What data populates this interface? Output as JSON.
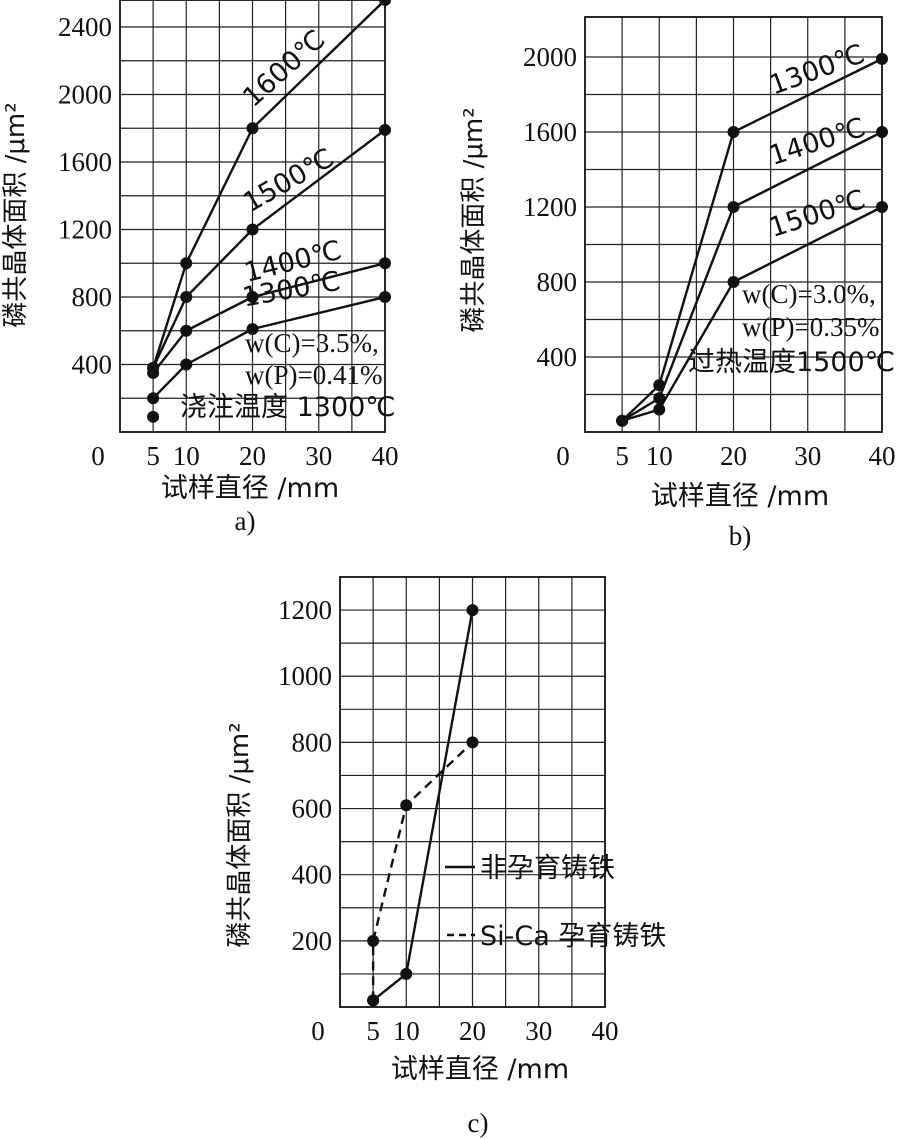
{
  "chart_data": [
    {
      "type": "line",
      "panel_label": "a)",
      "xlabel": "试样直径 /mm",
      "ylabel": "磷共晶体面积 /μm²",
      "xlim": [
        0,
        40
      ],
      "ylim": [
        0,
        2560
      ],
      "x_ticks": [
        0,
        5,
        10,
        20,
        30,
        40
      ],
      "x_tick_labels": [
        "0",
        "5",
        "10",
        "20",
        "30",
        "40"
      ],
      "y_ticks": [
        400,
        800,
        1200,
        1600,
        2000,
        2400
      ],
      "y_tick_labels": [
        "400",
        "800",
        "1200",
        "1600",
        "2000",
        "2400"
      ],
      "grid": true,
      "annotation_lines": [
        "w(C)=3.5%,",
        "w(P)=0.41%",
        "浇注温度 1300℃"
      ],
      "series": [
        {
          "name": "1600℃",
          "x": [
            5,
            10,
            20,
            40
          ],
          "y": [
            380,
            1000,
            1800,
            2560
          ]
        },
        {
          "name": "1500℃",
          "x": [
            5,
            10,
            20,
            40
          ],
          "y": [
            380,
            800,
            1200,
            1790
          ]
        },
        {
          "name": "1400℃",
          "x": [
            5,
            10,
            20,
            40
          ],
          "y": [
            350,
            600,
            800,
            1000
          ]
        },
        {
          "name": "1300℃",
          "x": [
            5,
            10,
            20,
            40
          ],
          "y": [
            200,
            400,
            610,
            800
          ]
        }
      ],
      "extra_points": [
        {
          "x": 5,
          "y": 90
        }
      ]
    },
    {
      "type": "line",
      "panel_label": "b)",
      "xlabel": "试样直径 /mm",
      "ylabel": "磷共晶体面积 /μm²",
      "xlim": [
        0,
        40
      ],
      "ylim": [
        0,
        2000
      ],
      "x_ticks": [
        0,
        5,
        10,
        20,
        30,
        40
      ],
      "x_tick_labels": [
        "0",
        "5",
        "10",
        "20",
        "30",
        "40"
      ],
      "y_ticks": [
        400,
        800,
        1200,
        1600,
        2000
      ],
      "y_tick_labels": [
        "400",
        "800",
        "1200",
        "1600",
        "2000"
      ],
      "grid": true,
      "annotation_lines": [
        "w(C)=3.0%,",
        "w(P)=0.35%",
        "过热温度1500℃"
      ],
      "series": [
        {
          "name": "1300℃",
          "x": [
            5,
            10,
            20,
            40
          ],
          "y": [
            60,
            250,
            1600,
            1990
          ]
        },
        {
          "name": "1400℃",
          "x": [
            5,
            10,
            20,
            40
          ],
          "y": [
            60,
            180,
            1200,
            1600
          ]
        },
        {
          "name": "1500℃",
          "x": [
            5,
            10,
            20,
            40
          ],
          "y": [
            60,
            120,
            800,
            1200
          ]
        }
      ]
    },
    {
      "type": "line",
      "panel_label": "c)",
      "xlabel": "试样直径 /mm",
      "ylabel": "磷共晶体面积 /μm²",
      "xlim": [
        0,
        40
      ],
      "ylim": [
        0,
        1300
      ],
      "x_ticks": [
        0,
        5,
        10,
        20,
        30,
        40
      ],
      "x_tick_labels": [
        "0",
        "5",
        "10",
        "20",
        "30",
        "40"
      ],
      "y_ticks": [
        200,
        400,
        600,
        800,
        1000,
        1200
      ],
      "y_tick_labels": [
        "200",
        "400",
        "600",
        "800",
        "1000",
        "1200"
      ],
      "grid": true,
      "legend": "right",
      "series": [
        {
          "name": "非孕育铸铁",
          "style": "solid",
          "x": [
            5,
            10,
            20
          ],
          "y": [
            20,
            100,
            1200
          ]
        },
        {
          "name": "Si-Ca 孕育铸铁",
          "style": "dashed",
          "x": [
            5,
            5,
            10,
            20
          ],
          "y": [
            20,
            200,
            610,
            800
          ]
        }
      ]
    }
  ]
}
